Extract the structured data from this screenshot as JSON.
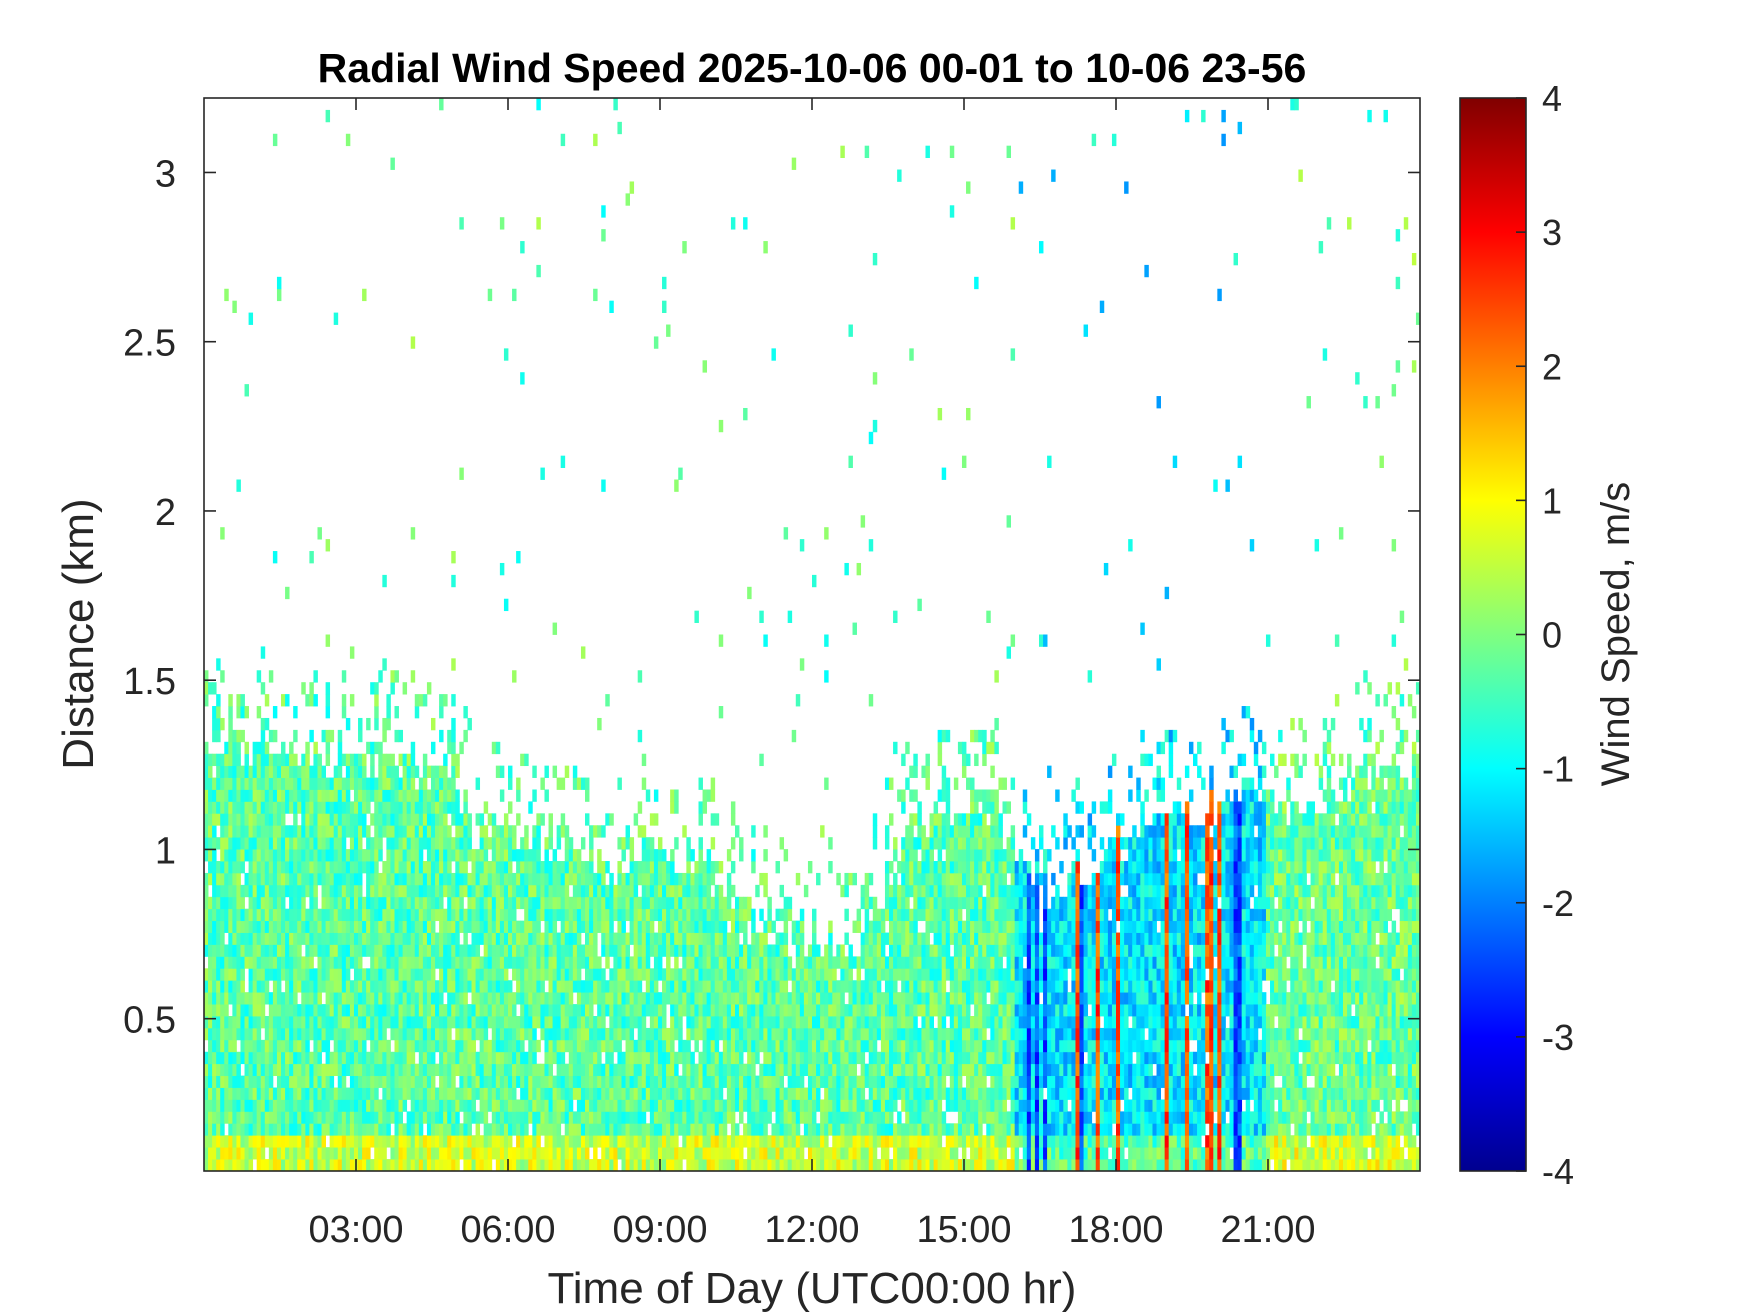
{
  "chart_data": {
    "type": "heatmap",
    "title": "Radial Wind Speed 2025-10-06 00-01 to 10-06 23-56",
    "xlabel": "Time of Day (UTC00:00 hr)",
    "ylabel": "Distance (km)",
    "colorbar_label": "Wind Speed, m/s",
    "xlim_hours": [
      0,
      24
    ],
    "ylim_km": [
      0.05,
      3.22
    ],
    "x_ticks": [
      {
        "value": 3,
        "label": "03:00"
      },
      {
        "value": 6,
        "label": "06:00"
      },
      {
        "value": 9,
        "label": "09:00"
      },
      {
        "value": 12,
        "label": "12:00"
      },
      {
        "value": 15,
        "label": "15:00"
      },
      {
        "value": 18,
        "label": "18:00"
      },
      {
        "value": 21,
        "label": "21:00"
      }
    ],
    "y_ticks": [
      {
        "value": 0.5,
        "label": "0.5"
      },
      {
        "value": 1,
        "label": "1"
      },
      {
        "value": 1.5,
        "label": "1.5"
      },
      {
        "value": 2,
        "label": "2"
      },
      {
        "value": 2.5,
        "label": "2.5"
      },
      {
        "value": 3,
        "label": "3"
      }
    ],
    "colorbar_ticks": [
      {
        "value": 4,
        "label": "4"
      },
      {
        "value": 3,
        "label": "3"
      },
      {
        "value": 2,
        "label": "2"
      },
      {
        "value": 1,
        "label": "1"
      },
      {
        "value": 0,
        "label": "0"
      },
      {
        "value": -1,
        "label": "-1"
      },
      {
        "value": -2,
        "label": "-2"
      },
      {
        "value": -3,
        "label": "-3"
      },
      {
        "value": -4,
        "label": "-4"
      }
    ],
    "clim": [
      -4,
      4
    ],
    "colormap": "jet",
    "signal_top_km": [
      {
        "t": 0.0,
        "h": 1.3
      },
      {
        "t": 1.0,
        "h": 1.3
      },
      {
        "t": 2.0,
        "h": 1.28
      },
      {
        "t": 3.0,
        "h": 1.27
      },
      {
        "t": 4.0,
        "h": 1.27
      },
      {
        "t": 4.8,
        "h": 1.25
      },
      {
        "t": 5.3,
        "h": 1.05
      },
      {
        "t": 6.0,
        "h": 1.05
      },
      {
        "t": 7.0,
        "h": 1.0
      },
      {
        "t": 8.0,
        "h": 0.95
      },
      {
        "t": 9.0,
        "h": 1.0
      },
      {
        "t": 10.0,
        "h": 0.95
      },
      {
        "t": 11.0,
        "h": 0.75
      },
      {
        "t": 12.0,
        "h": 0.72
      },
      {
        "t": 13.0,
        "h": 0.72
      },
      {
        "t": 13.5,
        "h": 0.9
      },
      {
        "t": 14.0,
        "h": 1.05
      },
      {
        "t": 15.0,
        "h": 1.1
      },
      {
        "t": 15.5,
        "h": 1.15
      },
      {
        "t": 16.5,
        "h": 0.85
      },
      {
        "t": 17.5,
        "h": 0.95
      },
      {
        "t": 18.5,
        "h": 1.05
      },
      {
        "t": 19.5,
        "h": 1.1
      },
      {
        "t": 20.5,
        "h": 1.15
      },
      {
        "t": 21.5,
        "h": 1.1
      },
      {
        "t": 22.5,
        "h": 1.2
      },
      {
        "t": 24.0,
        "h": 1.25
      }
    ],
    "speed_regimes": [
      {
        "from_hour": 0,
        "to_hour": 16,
        "typical_speed": -0.3,
        "note": "mostly near 0 m/s, yellow-green near ground"
      },
      {
        "from_hour": 16,
        "to_hour": 21,
        "typical_speed": -1.2,
        "note": "mixed negative/positive vertical streaks, strong positive near 18.5-19.5 h"
      },
      {
        "from_hour": 21,
        "to_hour": 24,
        "typical_speed": -0.2,
        "note": "near 0 m/s"
      }
    ]
  }
}
